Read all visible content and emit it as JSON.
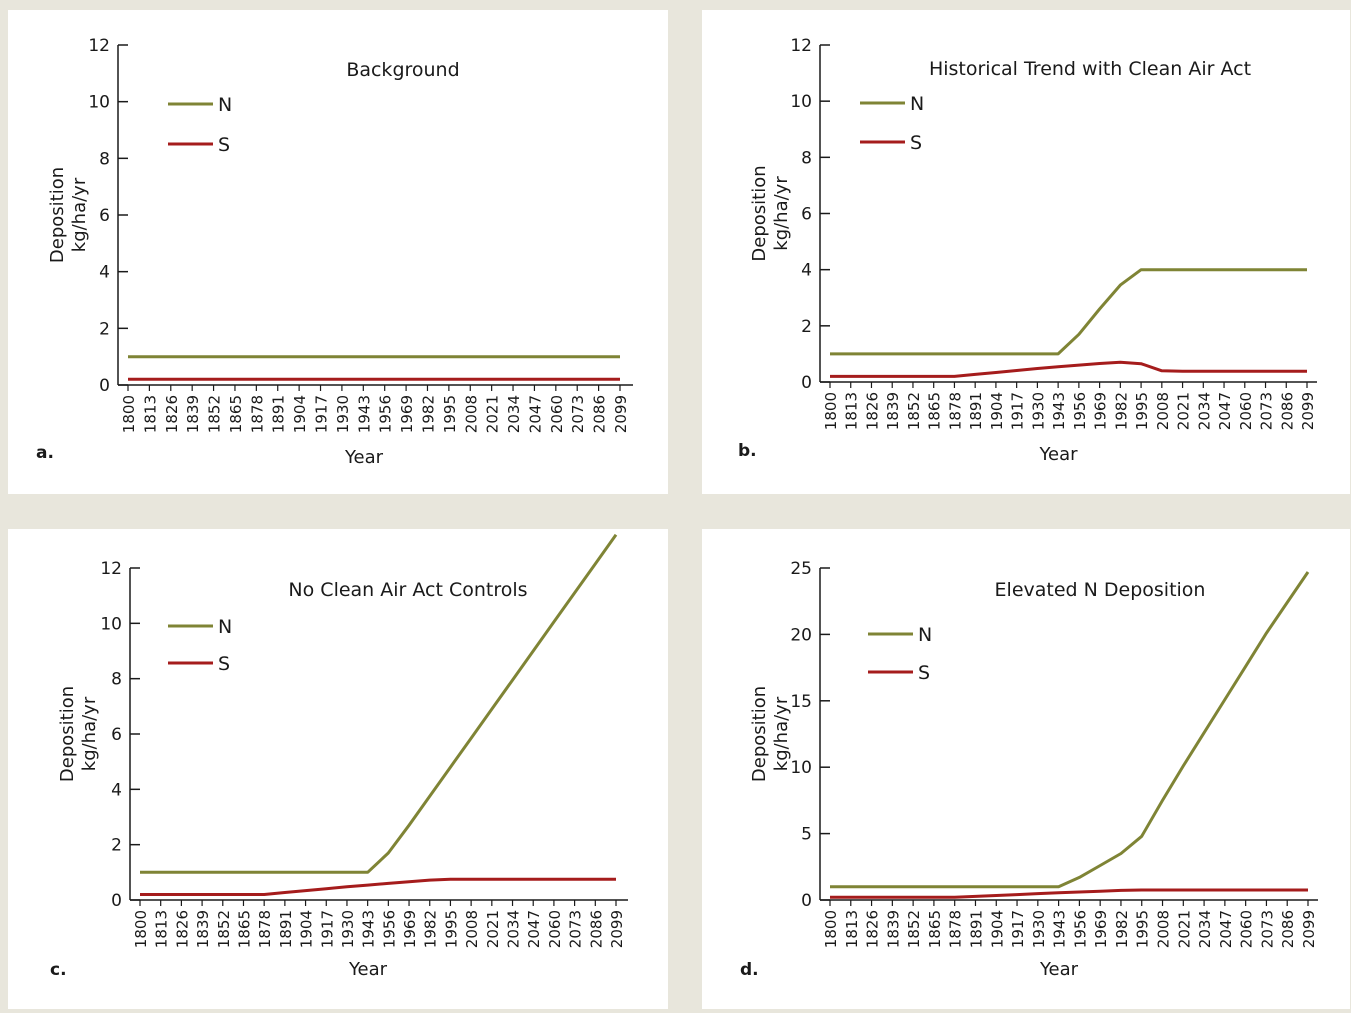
{
  "colors": {
    "N": "#7f8435",
    "S": "#a51c1c",
    "axis": "#1a1a1a"
  },
  "chart_data": [
    {
      "panel": "a.",
      "type": "line",
      "title": "Background",
      "xlabel": "Year",
      "ylabel": [
        "Deposition",
        "kg/ha/yr"
      ],
      "ylim": [
        0,
        12
      ],
      "yticks": [
        "0",
        "2",
        "4",
        "6",
        "8",
        "10",
        "12"
      ],
      "categories": [
        "1800",
        "1813",
        "1826",
        "1839",
        "1852",
        "1865",
        "1878",
        "1891",
        "1904",
        "1917",
        "1930",
        "1943",
        "1956",
        "1969",
        "1982",
        "1995",
        "2008",
        "2021",
        "2034",
        "2047",
        "2060",
        "2073",
        "2086",
        "2099"
      ],
      "series": [
        {
          "name": "N",
          "values": [
            1,
            1,
            1,
            1,
            1,
            1,
            1,
            1,
            1,
            1,
            1,
            1,
            1,
            1,
            1,
            1,
            1,
            1,
            1,
            1,
            1,
            1,
            1,
            1
          ]
        },
        {
          "name": "S",
          "values": [
            0.2,
            0.2,
            0.2,
            0.2,
            0.2,
            0.2,
            0.2,
            0.2,
            0.2,
            0.2,
            0.2,
            0.2,
            0.2,
            0.2,
            0.2,
            0.2,
            0.2,
            0.2,
            0.2,
            0.2,
            0.2,
            0.2,
            0.2,
            0.2
          ]
        }
      ],
      "grid": false,
      "legend": "top-left"
    },
    {
      "panel": "b.",
      "type": "line",
      "title": "Historical Trend with Clean Air Act",
      "xlabel": "Year",
      "ylabel": [
        "Deposition",
        "kg/ha/yr"
      ],
      "ylim": [
        0,
        12
      ],
      "yticks": [
        "0",
        "2",
        "4",
        "6",
        "8",
        "10",
        "12"
      ],
      "categories": [
        "1800",
        "1813",
        "1826",
        "1839",
        "1852",
        "1865",
        "1878",
        "1891",
        "1904",
        "1917",
        "1930",
        "1943",
        "1956",
        "1969",
        "1982",
        "1995",
        "2008",
        "2021",
        "2034",
        "2047",
        "2060",
        "2073",
        "2086",
        "2099"
      ],
      "series": [
        {
          "name": "N",
          "values": [
            1,
            1,
            1,
            1,
            1,
            1,
            1,
            1,
            1,
            1,
            1,
            1,
            1.7,
            2.6,
            3.45,
            4,
            4,
            4,
            4,
            4,
            4,
            4,
            4,
            4
          ]
        },
        {
          "name": "S",
          "values": [
            0.2,
            0.2,
            0.2,
            0.2,
            0.2,
            0.2,
            0.2,
            0.27,
            0.34,
            0.41,
            0.48,
            0.54,
            0.6,
            0.66,
            0.7,
            0.65,
            0.4,
            0.38,
            0.38,
            0.38,
            0.38,
            0.38,
            0.38,
            0.38
          ]
        }
      ],
      "grid": false,
      "legend": "top-left"
    },
    {
      "panel": "c.",
      "type": "line",
      "title": "No Clean Air Act Controls",
      "xlabel": "Year",
      "ylabel": [
        "Deposition",
        "kg/ha/yr"
      ],
      "ylim": [
        0,
        12
      ],
      "yticks": [
        "0",
        "2",
        "4",
        "6",
        "8",
        "10",
        "12"
      ],
      "categories": [
        "1800",
        "1813",
        "1826",
        "1839",
        "1852",
        "1865",
        "1878",
        "1891",
        "1904",
        "1917",
        "1930",
        "1943",
        "1956",
        "1969",
        "1982",
        "1995",
        "2008",
        "2021",
        "2034",
        "2047",
        "2060",
        "2073",
        "2086",
        "2099"
      ],
      "series": [
        {
          "name": "N",
          "values": [
            1,
            1,
            1,
            1,
            1,
            1,
            1,
            1,
            1,
            1,
            1,
            1,
            1.7,
            2.7,
            3.75,
            4.8,
            5.85,
            6.9,
            7.95,
            9,
            10.05,
            11.1,
            12.15,
            13.2
          ]
        },
        {
          "name": "S",
          "values": [
            0.2,
            0.2,
            0.2,
            0.2,
            0.2,
            0.2,
            0.2,
            0.27,
            0.34,
            0.41,
            0.48,
            0.54,
            0.6,
            0.66,
            0.72,
            0.75,
            0.75,
            0.75,
            0.75,
            0.75,
            0.75,
            0.75,
            0.75,
            0.75
          ]
        }
      ],
      "grid": false,
      "legend": "top-left"
    },
    {
      "panel": "d.",
      "type": "line",
      "title": "Elevated N Deposition",
      "xlabel": "Year",
      "ylabel": [
        "Deposition",
        "kg/ha/yr"
      ],
      "ylim": [
        0,
        25
      ],
      "yticks": [
        "0",
        "5",
        "10",
        "15",
        "20",
        "25"
      ],
      "categories": [
        "1800",
        "1813",
        "1826",
        "1839",
        "1852",
        "1865",
        "1878",
        "1891",
        "1904",
        "1917",
        "1930",
        "1943",
        "1956",
        "1969",
        "1982",
        "1995",
        "2008",
        "2021",
        "2034",
        "2047",
        "2060",
        "2073",
        "2086",
        "2099"
      ],
      "series": [
        {
          "name": "N",
          "values": [
            1,
            1,
            1,
            1,
            1,
            1,
            1,
            1,
            1,
            1,
            1,
            1,
            1.7,
            2.6,
            3.5,
            4.8,
            7.5,
            10.1,
            12.6,
            15.1,
            17.6,
            20.1,
            22.4,
            24.7
          ]
        },
        {
          "name": "S",
          "values": [
            0.2,
            0.2,
            0.2,
            0.2,
            0.2,
            0.2,
            0.2,
            0.27,
            0.34,
            0.41,
            0.48,
            0.54,
            0.6,
            0.66,
            0.72,
            0.75,
            0.75,
            0.75,
            0.75,
            0.75,
            0.75,
            0.75,
            0.75,
            0.75
          ]
        }
      ],
      "grid": false,
      "legend": "top-left"
    }
  ]
}
